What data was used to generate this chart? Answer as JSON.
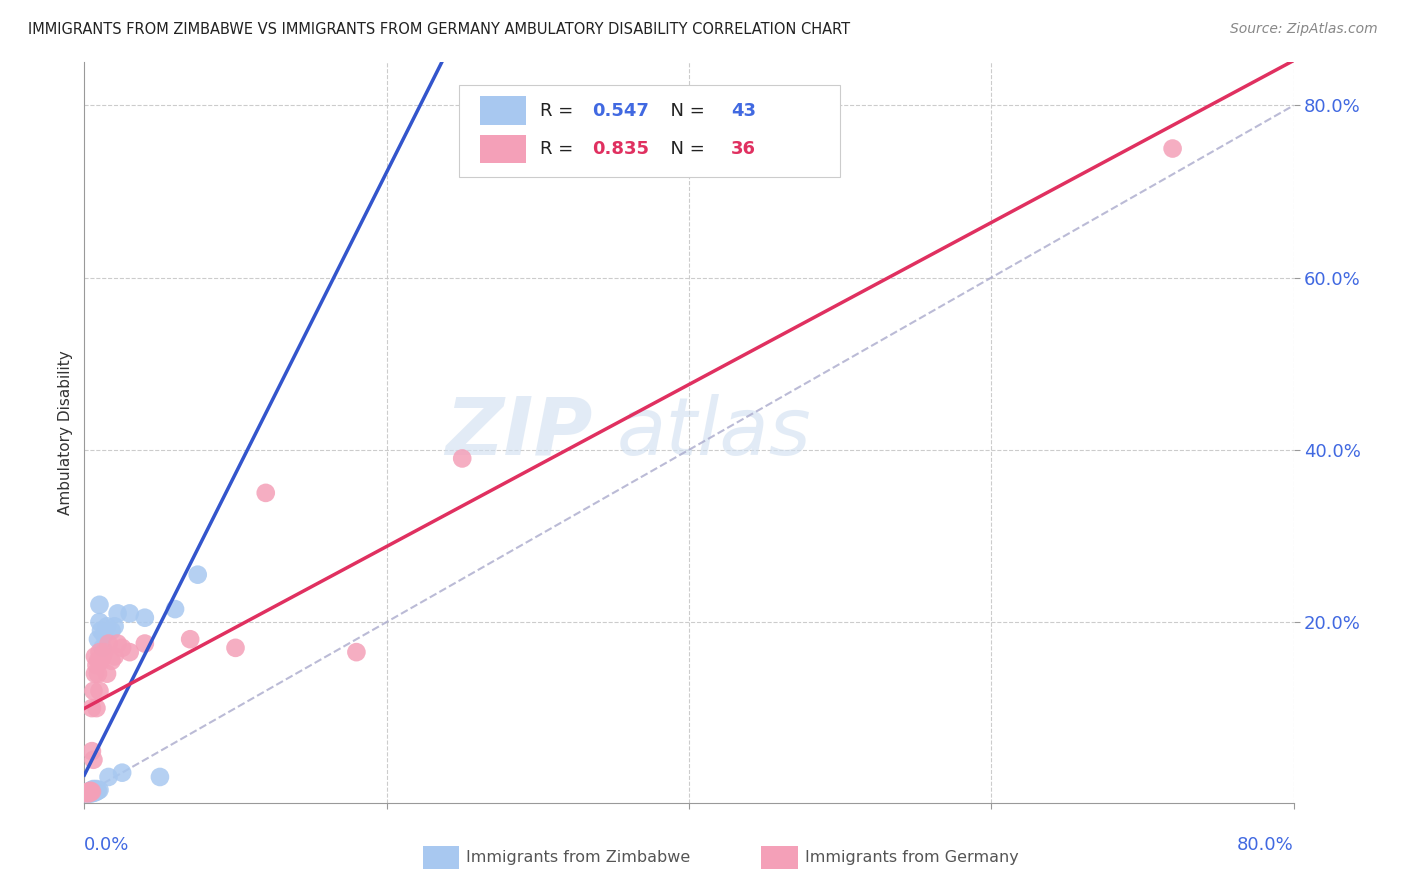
{
  "title": "IMMIGRANTS FROM ZIMBABWE VS IMMIGRANTS FROM GERMANY AMBULATORY DISABILITY CORRELATION CHART",
  "source": "Source: ZipAtlas.com",
  "ylabel": "Ambulatory Disability",
  "y_tick_values": [
    0.2,
    0.4,
    0.6,
    0.8
  ],
  "xlim": [
    0.0,
    0.8
  ],
  "ylim": [
    -0.01,
    0.85
  ],
  "legend1_R": "0.547",
  "legend1_N": "43",
  "legend2_R": "0.835",
  "legend2_N": "36",
  "color_zimbabwe": "#a8c8f0",
  "color_germany": "#f4a0b8",
  "line_color_zimbabwe": "#3355cc",
  "line_color_germany": "#e03060",
  "watermark_zip": "ZIP",
  "watermark_atlas": "atlas",
  "zim_x": [
    0.001,
    0.002,
    0.002,
    0.003,
    0.003,
    0.003,
    0.004,
    0.004,
    0.004,
    0.004,
    0.005,
    0.005,
    0.005,
    0.005,
    0.005,
    0.006,
    0.006,
    0.006,
    0.007,
    0.007,
    0.007,
    0.008,
    0.008,
    0.008,
    0.009,
    0.009,
    0.01,
    0.01,
    0.01,
    0.011,
    0.012,
    0.013,
    0.015,
    0.016,
    0.018,
    0.02,
    0.022,
    0.025,
    0.03,
    0.04,
    0.05,
    0.06,
    0.075
  ],
  "zim_y": [
    0.001,
    0.001,
    0.002,
    0.001,
    0.002,
    0.003,
    0.001,
    0.002,
    0.003,
    0.004,
    0.001,
    0.002,
    0.003,
    0.004,
    0.005,
    0.002,
    0.004,
    0.006,
    0.002,
    0.003,
    0.005,
    0.003,
    0.004,
    0.006,
    0.004,
    0.18,
    0.005,
    0.2,
    0.22,
    0.19,
    0.17,
    0.185,
    0.195,
    0.02,
    0.19,
    0.195,
    0.21,
    0.025,
    0.21,
    0.205,
    0.02,
    0.215,
    0.255
  ],
  "ger_x": [
    0.001,
    0.002,
    0.003,
    0.003,
    0.004,
    0.004,
    0.005,
    0.005,
    0.005,
    0.006,
    0.006,
    0.007,
    0.007,
    0.008,
    0.008,
    0.009,
    0.009,
    0.01,
    0.01,
    0.011,
    0.012,
    0.013,
    0.015,
    0.016,
    0.018,
    0.02,
    0.022,
    0.025,
    0.03,
    0.04,
    0.07,
    0.1,
    0.12,
    0.18,
    0.25,
    0.72
  ],
  "ger_y": [
    0.001,
    0.002,
    0.001,
    0.003,
    0.002,
    0.004,
    0.003,
    0.05,
    0.1,
    0.04,
    0.12,
    0.14,
    0.16,
    0.1,
    0.15,
    0.14,
    0.155,
    0.12,
    0.165,
    0.155,
    0.16,
    0.165,
    0.14,
    0.175,
    0.155,
    0.16,
    0.175,
    0.17,
    0.165,
    0.175,
    0.18,
    0.17,
    0.35,
    0.165,
    0.39,
    0.75
  ]
}
